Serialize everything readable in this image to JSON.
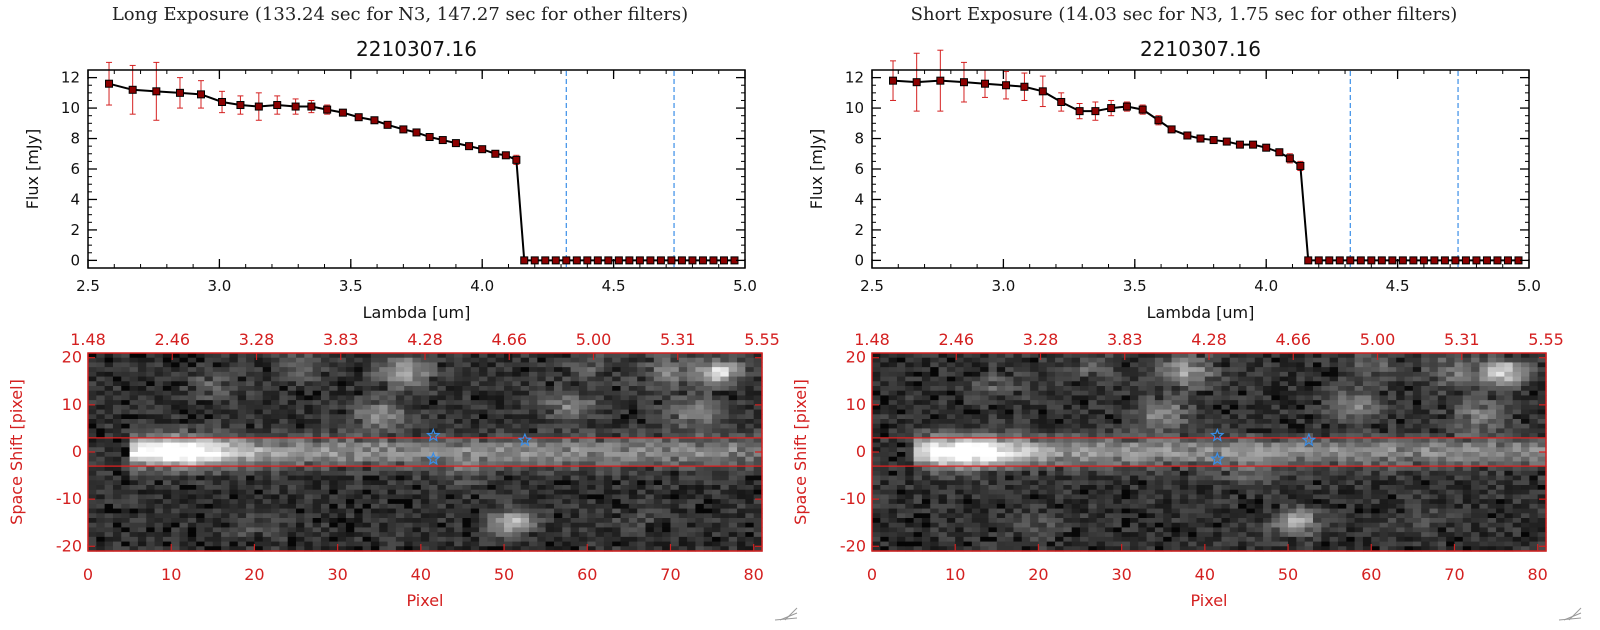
{
  "panels": [
    {
      "title": "Long Exposure (133.24 sec for N3, 147.27 sec for other filters)",
      "spectrum": {
        "type": "line",
        "title": "2210307.16",
        "xlabel": "Lambda [um]",
        "ylabel": "Flux [mJy]",
        "xlim": [
          2.5,
          5.0
        ],
        "ylim": [
          -0.5,
          12.5
        ],
        "x_ticks": [
          "2.5",
          "3.0",
          "3.5",
          "4.0",
          "4.5",
          "5.0"
        ],
        "y_ticks": [
          "0",
          "2",
          "4",
          "6",
          "8",
          "10",
          "12"
        ],
        "vlines": [
          4.32,
          4.73
        ],
        "series": [
          {
            "name": "flux",
            "x": [
              2.58,
              2.67,
              2.76,
              2.85,
              2.93,
              3.01,
              3.08,
              3.15,
              3.22,
              3.29,
              3.35,
              3.41,
              3.47,
              3.53,
              3.59,
              3.64,
              3.7,
              3.75,
              3.8,
              3.85,
              3.9,
              3.95,
              4.0,
              4.05,
              4.09,
              4.13,
              4.16,
              4.2,
              4.24,
              4.28,
              4.32,
              4.36,
              4.4,
              4.44,
              4.48,
              4.52,
              4.56,
              4.6,
              4.64,
              4.68,
              4.72,
              4.76,
              4.8,
              4.84,
              4.88,
              4.92,
              4.96
            ],
            "y": [
              11.6,
              11.2,
              11.1,
              11.0,
              10.9,
              10.4,
              10.2,
              10.1,
              10.2,
              10.1,
              10.1,
              9.9,
              9.7,
              9.4,
              9.2,
              8.9,
              8.6,
              8.4,
              8.1,
              7.9,
              7.7,
              7.5,
              7.3,
              7.0,
              6.9,
              6.6,
              0,
              0,
              0,
              0,
              0,
              0,
              0,
              0,
              0,
              0,
              0,
              0,
              0,
              0,
              0,
              0,
              0,
              0,
              0,
              0,
              0
            ],
            "yerr": [
              1.4,
              1.6,
              1.9,
              1.0,
              0.9,
              0.7,
              0.6,
              0.9,
              0.6,
              0.5,
              0.4,
              0.3,
              0.2,
              0.2,
              0.2,
              0.2,
              0.2,
              0.2,
              0.2,
              0.2,
              0.2,
              0.2,
              0.2,
              0.2,
              0.2,
              0.3,
              0,
              0,
              0,
              0,
              0,
              0,
              0,
              0,
              0,
              0,
              0,
              0,
              0,
              0,
              0,
              0,
              0,
              0,
              0,
              0,
              0
            ]
          }
        ]
      },
      "image": {
        "type": "heatmap",
        "xlabel": "Pixel",
        "ylabel": "Space Shift [pixel]",
        "xlim": [
          0,
          81
        ],
        "ylim": [
          -21,
          21
        ],
        "x_ticks": [
          "0",
          "10",
          "20",
          "30",
          "40",
          "50",
          "60",
          "70",
          "80"
        ],
        "y_ticks": [
          "-20",
          "-10",
          "0",
          "10",
          "20"
        ],
        "top_ticks": [
          "1.48",
          "2.46",
          "3.28",
          "3.83",
          "4.28",
          "4.66",
          "5.00",
          "5.31",
          "5.55"
        ],
        "aperture_y": [
          -3,
          3
        ],
        "markers": [
          {
            "x": 41,
            "y": 3.5
          },
          {
            "x": 41,
            "y": -1.5
          },
          {
            "x": 52,
            "y": 2.5
          }
        ]
      }
    },
    {
      "title": "Short Exposure (14.03 sec for N3, 1.75 sec for other filters)",
      "spectrum": {
        "type": "line",
        "title": "2210307.16",
        "xlabel": "Lambda [um]",
        "ylabel": "Flux [mJy]",
        "xlim": [
          2.5,
          5.0
        ],
        "ylim": [
          -0.5,
          12.5
        ],
        "x_ticks": [
          "2.5",
          "3.0",
          "3.5",
          "4.0",
          "4.5",
          "5.0"
        ],
        "y_ticks": [
          "0",
          "2",
          "4",
          "6",
          "8",
          "10",
          "12"
        ],
        "vlines": [
          4.32,
          4.73
        ],
        "series": [
          {
            "name": "flux",
            "x": [
              2.58,
              2.67,
              2.76,
              2.85,
              2.93,
              3.01,
              3.08,
              3.15,
              3.22,
              3.29,
              3.35,
              3.41,
              3.47,
              3.53,
              3.59,
              3.64,
              3.7,
              3.75,
              3.8,
              3.85,
              3.9,
              3.95,
              4.0,
              4.05,
              4.09,
              4.13,
              4.16,
              4.2,
              4.24,
              4.28,
              4.32,
              4.36,
              4.4,
              4.44,
              4.48,
              4.52,
              4.56,
              4.6,
              4.64,
              4.68,
              4.72,
              4.76,
              4.8,
              4.84,
              4.88,
              4.92,
              4.96
            ],
            "y": [
              11.8,
              11.7,
              11.8,
              11.7,
              11.6,
              11.5,
              11.4,
              11.1,
              10.4,
              9.8,
              9.8,
              10.0,
              10.1,
              9.9,
              9.2,
              8.6,
              8.2,
              8.0,
              7.9,
              7.8,
              7.6,
              7.6,
              7.4,
              7.1,
              6.7,
              6.2,
              0,
              0,
              0,
              0,
              0,
              0,
              0,
              0,
              0,
              0,
              0,
              0,
              0,
              0,
              0,
              0,
              0,
              0,
              0,
              0,
              0
            ],
            "yerr": [
              1.3,
              1.9,
              2.0,
              1.3,
              0.9,
              0.9,
              0.9,
              1.0,
              0.6,
              0.5,
              0.6,
              0.5,
              0.3,
              0.3,
              0.3,
              0.2,
              0.2,
              0.2,
              0.2,
              0.2,
              0.2,
              0.2,
              0.2,
              0.2,
              0.3,
              0.3,
              0,
              0,
              0,
              0,
              0,
              0,
              0,
              0,
              0,
              0,
              0,
              0,
              0,
              0,
              0,
              0,
              0,
              0,
              0,
              0,
              0
            ]
          }
        ]
      },
      "image": {
        "type": "heatmap",
        "xlabel": "Pixel",
        "ylabel": "Space Shift [pixel]",
        "xlim": [
          0,
          81
        ],
        "ylim": [
          -21,
          21
        ],
        "x_ticks": [
          "0",
          "10",
          "20",
          "30",
          "40",
          "50",
          "60",
          "70",
          "80"
        ],
        "y_ticks": [
          "-20",
          "-10",
          "0",
          "10",
          "20"
        ],
        "top_ticks": [
          "1.48",
          "2.46",
          "3.28",
          "3.83",
          "4.28",
          "4.66",
          "5.00",
          "5.31",
          "5.55"
        ],
        "aperture_y": [
          -3,
          3
        ],
        "markers": [
          {
            "x": 41,
            "y": 3.5
          },
          {
            "x": 41,
            "y": -1.5
          },
          {
            "x": 52,
            "y": 2.5
          }
        ]
      }
    }
  ],
  "colors": {
    "axis": "#000000",
    "line": "#000000",
    "marker": "#8b0000",
    "errorbar": "#d42020",
    "vline": "#3a8ee8",
    "image_axis": "#d42020",
    "aperture": "#e02020",
    "star": "#3a8ee8"
  }
}
